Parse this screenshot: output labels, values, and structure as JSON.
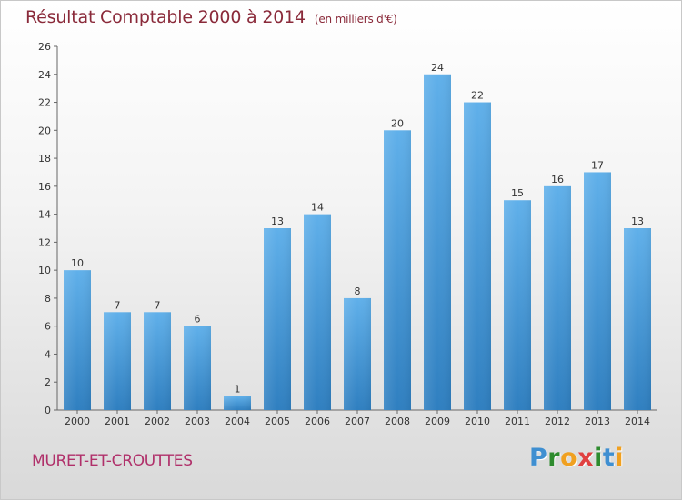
{
  "title": "Résultat Comptable 2000 à 2014",
  "subtitle": "(en milliers d'€)",
  "commune": "MURET-ET-CROUTTES",
  "logo": {
    "letters": [
      "P",
      "r",
      "o",
      "x",
      "i",
      "t",
      "i"
    ],
    "colors": [
      "#3f8fd1",
      "#2e8b2e",
      "#f0a020",
      "#e04040",
      "#2e8b2e",
      "#3f8fd1",
      "#f0a020"
    ]
  },
  "colors": {
    "bar_top": "#60b0ea",
    "bar_bottom": "#2f7fc0",
    "title": "#8a2a3a",
    "commune": "#b0306a"
  },
  "chart_data": {
    "type": "bar",
    "title": "Résultat Comptable 2000 à 2014",
    "subtitle": "(en milliers d'€)",
    "xlabel": "",
    "ylabel": "",
    "categories": [
      "2000",
      "2001",
      "2002",
      "2003",
      "2004",
      "2005",
      "2006",
      "2007",
      "2008",
      "2009",
      "2010",
      "2011",
      "2012",
      "2013",
      "2014"
    ],
    "values": [
      10,
      7,
      7,
      6,
      1,
      13,
      14,
      8,
      20,
      24,
      22,
      15,
      16,
      17,
      13
    ],
    "ylim": [
      0,
      26
    ],
    "yticks": [
      0,
      2,
      4,
      6,
      8,
      10,
      12,
      14,
      16,
      18,
      20,
      22,
      24,
      26
    ],
    "grid": false,
    "legend": "none"
  }
}
